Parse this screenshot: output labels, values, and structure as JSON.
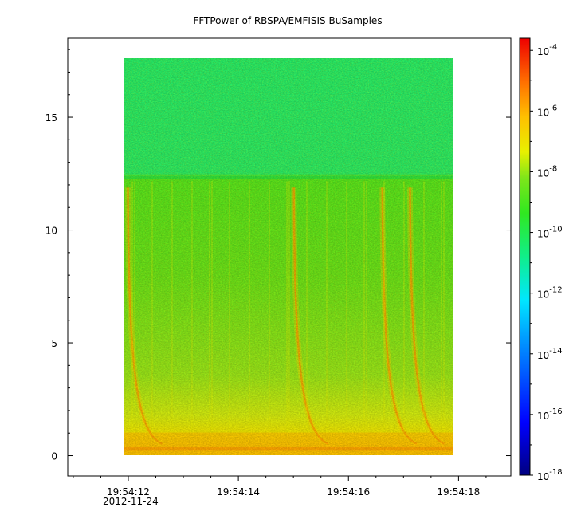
{
  "chart_data": {
    "type": "heatmap",
    "title": "FFTPower of RBSPA/EMFISIS  BuSamples",
    "xlabel": "",
    "ylabel": "",
    "x_ticks": [
      {
        "value": 12,
        "label": "19:54:12"
      },
      {
        "value": 14,
        "label": "19:54:14"
      },
      {
        "value": 16,
        "label": "19:54:16"
      },
      {
        "value": 18,
        "label": "19:54:18"
      }
    ],
    "x_date_label": "2012-11-24",
    "xlim": [
      10.9,
      18.95
    ],
    "y_ticks": [
      0,
      5,
      10,
      15
    ],
    "ylim": [
      -0.9,
      18.5
    ],
    "data_extent": {
      "x": [
        11.95,
        17.9
      ],
      "y": [
        0,
        17.5
      ]
    },
    "colorbar": {
      "scale": "log",
      "range_exp": [
        -18,
        -3.6
      ],
      "tick_exponents": [
        -4,
        -6,
        -8,
        -10,
        -12,
        -14,
        -16,
        -18
      ],
      "tick_base": "10"
    },
    "features": {
      "cutoff_frequency": 12.3,
      "background_above_cutoff_exp": -12.2,
      "background_below_cutoff_exp": -9.5,
      "low_frequency_band_exp": -7.5,
      "chorus_streaks_start_times": [
        12.0,
        15.0,
        16.6,
        17.1
      ]
    }
  }
}
